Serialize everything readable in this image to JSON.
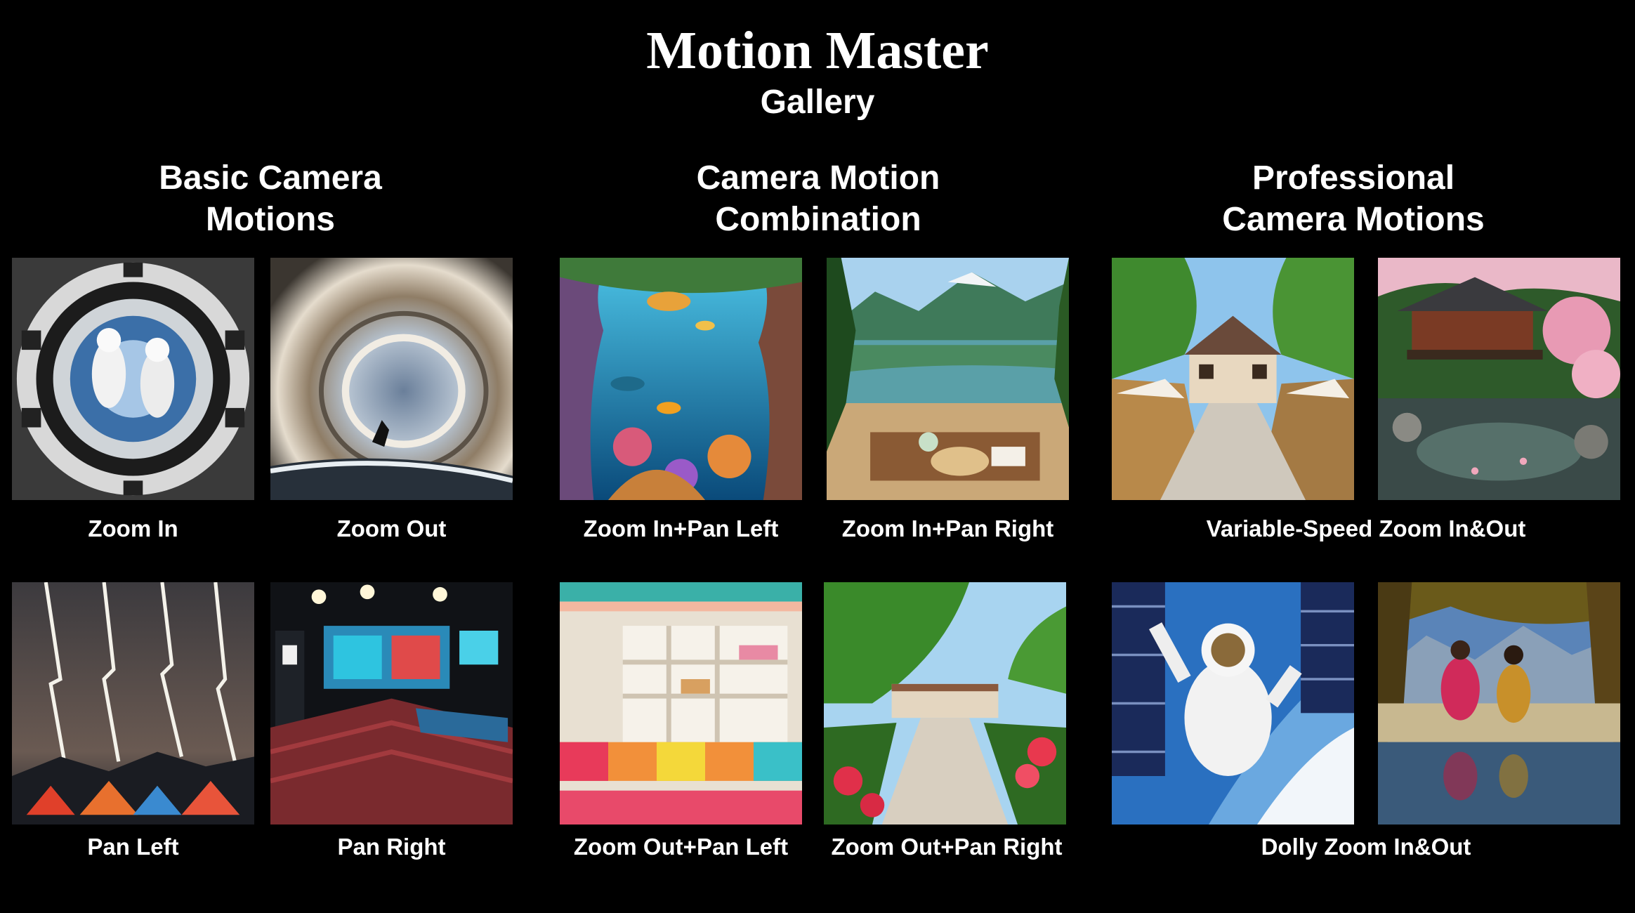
{
  "header": {
    "title": "Motion Master",
    "subtitle": "Gallery"
  },
  "sections": [
    {
      "title_lines": [
        "Basic Camera",
        "Motions"
      ]
    },
    {
      "title_lines": [
        "Camera Motion",
        "Combination"
      ]
    },
    {
      "title_lines": [
        "Professional",
        "Camera Motions"
      ]
    }
  ],
  "captions": {
    "zoom_in": "Zoom In",
    "zoom_out": "Zoom Out",
    "zoom_in_pan_left": "Zoom In+Pan Left",
    "zoom_in_pan_right": "Zoom In+Pan Right",
    "variable_speed": "Variable-Speed Zoom In&Out",
    "pan_left": "Pan Left",
    "pan_right": "Pan Right",
    "zoom_out_pan_left": "Zoom Out+Pan Left",
    "zoom_out_pan_right": "Zoom Out+Pan Right",
    "dolly_zoom": "Dolly Zoom In&Out"
  }
}
